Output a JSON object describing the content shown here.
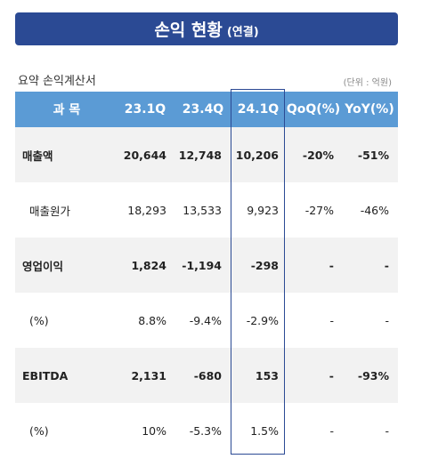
{
  "header": {
    "title": "손익 현황",
    "title_sub": "(연결)"
  },
  "subtitle": "요약 손익계산서",
  "unit": "(단위 : 억원)",
  "table": {
    "columns": [
      "과 목",
      "23.1Q",
      "23.4Q",
      "24.1Q",
      "QoQ(%)",
      "YoY(%)"
    ],
    "rows": [
      [
        "매출액",
        "20,644",
        "12,748",
        "10,206",
        "-20%",
        "-51%"
      ],
      [
        "매출원가",
        "18,293",
        "13,533",
        "9,923",
        "-27%",
        "-46%"
      ],
      [
        "영업이익",
        "1,824",
        "-1,194",
        "-298",
        "-",
        "-"
      ],
      [
        "(%)",
        "8.8%",
        "-9.4%",
        "-2.9%",
        "-",
        "-"
      ],
      [
        "EBITDA",
        "2,131",
        "-680",
        "153",
        "-",
        "-93%"
      ],
      [
        "(%)",
        "10%",
        "-5.3%",
        "1.5%",
        "-",
        "-"
      ]
    ]
  }
}
